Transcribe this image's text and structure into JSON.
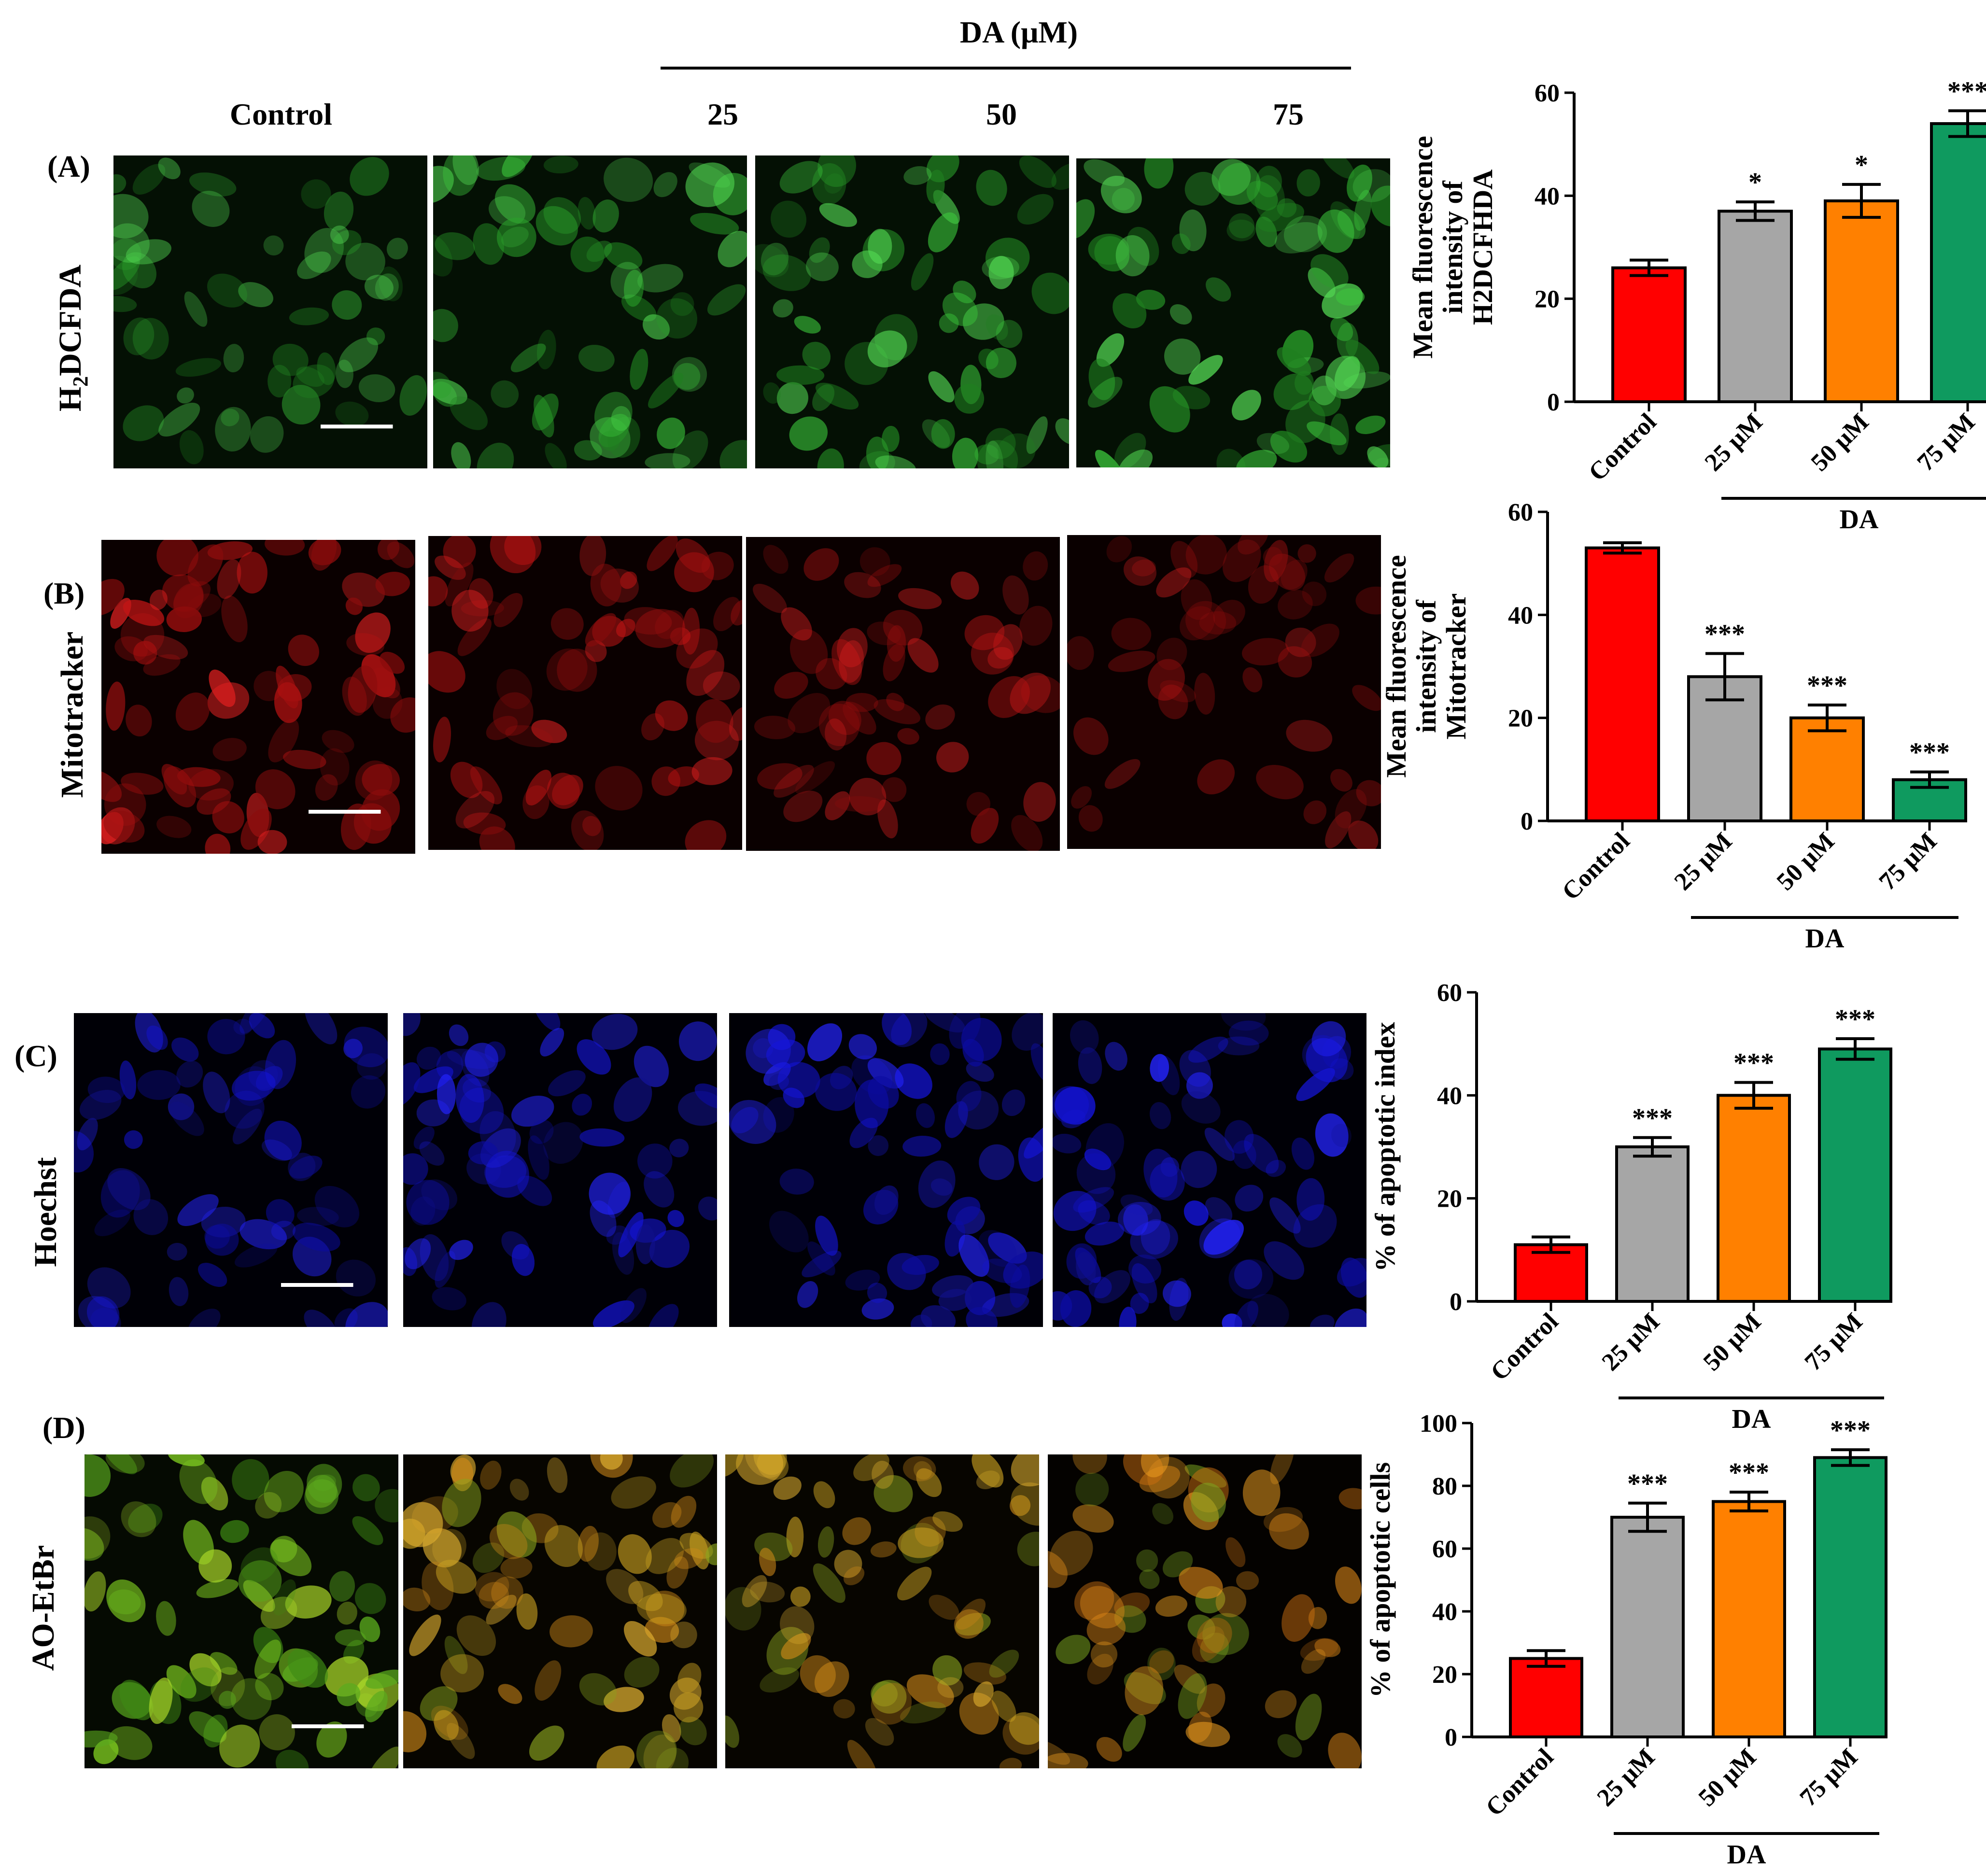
{
  "header": {
    "treatment_label": "DA (μM)",
    "col_labels": [
      "Control",
      "25",
      "50",
      "75"
    ]
  },
  "panels": [
    {
      "letter": "(A)",
      "stain": "H2DCFDA",
      "stain_main": "H",
      "stain_sub": "2",
      "stain_rest": "DCFDA",
      "color": "#33cc33"
    },
    {
      "letter": "(B)",
      "stain": "Mitotracker",
      "color": "#dd1a1a"
    },
    {
      "letter": "(C)",
      "stain": "Hoechst",
      "color": "#1a1aff"
    },
    {
      "letter": "(D)",
      "stain": "AO-EtBr",
      "color": "#88cc22"
    }
  ],
  "colors": {
    "control": "#ff0000",
    "dose_25": "#a6a6a6",
    "dose_50": "#ff8000",
    "dose_75": "#0f9a5f"
  },
  "chart_data": [
    {
      "type": "bar",
      "panel": "A",
      "categories": [
        "Control",
        "25 μM",
        "50 μM",
        "75 μM"
      ],
      "values": [
        26,
        37,
        39,
        54
      ],
      "errors": [
        1.5,
        1.8,
        3.2,
        2.5
      ],
      "significance": [
        "",
        "*",
        "*",
        "***"
      ],
      "ylabel": [
        "Mean fluorescence",
        "intensity of",
        "H2DCFHDA"
      ],
      "ylim": [
        0,
        60
      ],
      "yticks": [
        0,
        20,
        40,
        60
      ],
      "group_label": "DA"
    },
    {
      "type": "bar",
      "panel": "B",
      "categories": [
        "Control",
        "25 μM",
        "50 μM",
        "75 μM"
      ],
      "values": [
        53,
        28,
        20,
        8
      ],
      "errors": [
        1.0,
        4.5,
        2.5,
        1.5
      ],
      "significance": [
        "",
        "***",
        "***",
        "***"
      ],
      "ylabel": [
        "Mean fluorescence",
        "intensity of",
        "Mitotracker"
      ],
      "ylim": [
        0,
        60
      ],
      "yticks": [
        0,
        20,
        40,
        60
      ],
      "group_label": "DA"
    },
    {
      "type": "bar",
      "panel": "C",
      "categories": [
        "Control",
        "25 μM",
        "50 μM",
        "75 μM"
      ],
      "values": [
        11,
        30,
        40,
        49
      ],
      "errors": [
        1.5,
        1.8,
        2.5,
        2.0
      ],
      "significance": [
        "",
        "***",
        "***",
        "***"
      ],
      "ylabel": [
        "% of apoptotic index"
      ],
      "ylim": [
        0,
        60
      ],
      "yticks": [
        0,
        20,
        40,
        60
      ],
      "group_label": "DA"
    },
    {
      "type": "bar",
      "panel": "D",
      "categories": [
        "Control",
        "25 μM",
        "50 μM",
        "75 μM"
      ],
      "values": [
        25,
        70,
        75,
        89
      ],
      "errors": [
        2.5,
        4.5,
        3.0,
        2.5
      ],
      "significance": [
        "",
        "***",
        "***",
        "***"
      ],
      "ylabel": [
        "% of apoptotic cells"
      ],
      "ylim": [
        0,
        100
      ],
      "yticks": [
        0,
        20,
        40,
        60,
        80,
        100
      ],
      "group_label": "DA"
    }
  ]
}
